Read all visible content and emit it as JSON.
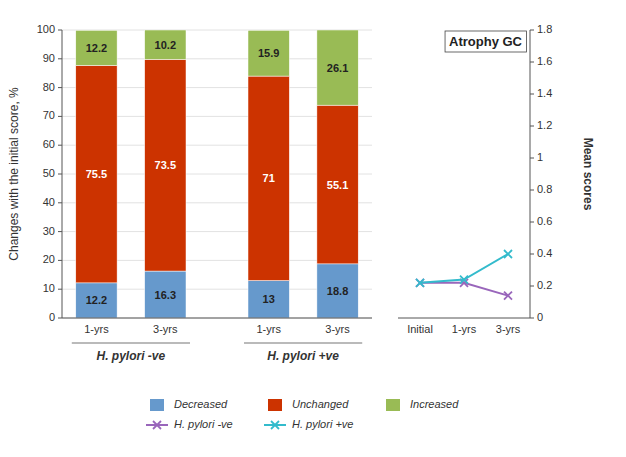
{
  "chart_data": [
    {
      "type": "bar",
      "stacked": true,
      "data_labels": true,
      "grid": true,
      "legend": "bottom",
      "ylabel": "Changes with the initial score, %",
      "categories": [
        "1-yrs",
        "3-yrs",
        "1-yrs",
        "3-yrs"
      ],
      "group_labels": [
        "H. pylori -ve",
        "H. pylori +ve"
      ],
      "ylim": [
        0,
        100
      ],
      "yticks": [
        0,
        10,
        20,
        30,
        40,
        50,
        60,
        70,
        80,
        90,
        100
      ],
      "series": [
        {
          "name": "Decreased",
          "color": "#6699CC",
          "values": [
            12.2,
            16.3,
            13,
            18.8
          ]
        },
        {
          "name": "Unchanged",
          "color": "#CC3300",
          "values": [
            75.5,
            73.5,
            71,
            55.1
          ]
        },
        {
          "name": "Increased",
          "color": "#99BB55",
          "values": [
            12.2,
            10.2,
            15.9,
            26.1
          ]
        }
      ]
    },
    {
      "type": "line",
      "title": "Atrophy GC",
      "grid": false,
      "legend": "bottom",
      "ylabel": "Mean scores",
      "categories": [
        "Initial",
        "1-yrs",
        "3-yrs"
      ],
      "ylim": [
        0,
        1.8
      ],
      "yticks": [
        0,
        0.2,
        0.4,
        0.6,
        0.8,
        1,
        1.2,
        1.4,
        1.6,
        1.8
      ],
      "series": [
        {
          "name": "H. pylori -ve",
          "color": "#9966BB",
          "marker": "x",
          "values": [
            0.22,
            0.22,
            0.14
          ]
        },
        {
          "name": "H. pylori +ve",
          "color": "#33BBCC",
          "marker": "x",
          "values": [
            0.22,
            0.24,
            0.4
          ]
        }
      ]
    }
  ]
}
